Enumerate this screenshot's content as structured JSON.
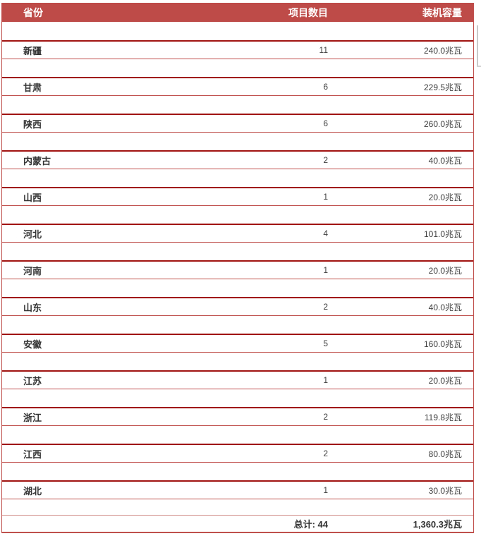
{
  "table": {
    "columns": {
      "province": "省份",
      "projects": "项目数目",
      "capacity": "装机容量"
    },
    "rows": [
      {
        "province": "新疆",
        "projects": "11",
        "capacity": "240.0兆瓦"
      },
      {
        "province": "甘肃",
        "projects": "6",
        "capacity": "229.5兆瓦"
      },
      {
        "province": "陕西",
        "projects": "6",
        "capacity": "260.0兆瓦"
      },
      {
        "province": "内蒙古",
        "projects": "2",
        "capacity": "40.0兆瓦"
      },
      {
        "province": "山西",
        "projects": "1",
        "capacity": "20.0兆瓦"
      },
      {
        "province": "河北",
        "projects": "4",
        "capacity": "101.0兆瓦"
      },
      {
        "province": "河南",
        "projects": "1",
        "capacity": "20.0兆瓦"
      },
      {
        "province": "山东",
        "projects": "2",
        "capacity": "40.0兆瓦"
      },
      {
        "province": "安徽",
        "projects": "5",
        "capacity": "160.0兆瓦"
      },
      {
        "province": "江苏",
        "projects": "1",
        "capacity": "20.0兆瓦"
      },
      {
        "province": "浙江",
        "projects": "2",
        "capacity": "119.8兆瓦"
      },
      {
        "province": "江西",
        "projects": "2",
        "capacity": "80.0兆瓦"
      },
      {
        "province": "湖北",
        "projects": "1",
        "capacity": "30.0兆瓦"
      }
    ],
    "total": {
      "label_and_count": "总计: 44",
      "capacity": "1,360.3兆瓦"
    }
  },
  "colors": {
    "header_bg": "#be4b48",
    "row_border_dark": "#a01311",
    "row_border_light": "#c0504d",
    "header_text": "#ffffff",
    "body_text": "#404040"
  }
}
